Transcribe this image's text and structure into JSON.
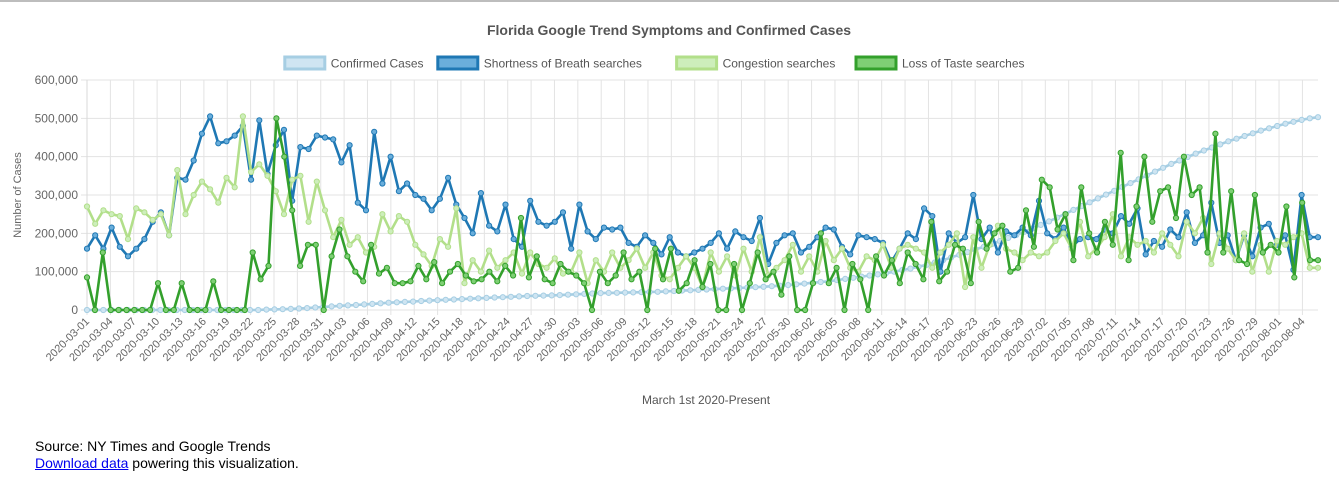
{
  "chart_data": {
    "type": "line",
    "title": "Florida Google Trend Symptoms and Confirmed Cases",
    "xlabel": "March 1st 2020-Present",
    "ylabel": "Number of Cases",
    "ylim": [
      0,
      600000
    ],
    "yticks": [
      "0",
      "100,000",
      "200,000",
      "300,000",
      "400,000",
      "500,000",
      "600,000"
    ],
    "grid": true,
    "legend_position": "top",
    "x_start": "2020-03-01",
    "x_end": "2020-08-06",
    "x_tick_labels": [
      "2020-03-01",
      "2020-03-04",
      "2020-03-07",
      "2020-03-10",
      "2020-03-13",
      "2020-03-16",
      "2020-03-19",
      "2020-03-22",
      "2020-03-25",
      "2020-03-28",
      "2020-03-31",
      "2020-04-03",
      "2020-04-06",
      "2020-04-09",
      "2020-04-12",
      "2020-04-15",
      "2020-04-18",
      "2020-04-21",
      "2020-04-24",
      "2020-04-27",
      "2020-04-30",
      "2020-05-03",
      "2020-05-06",
      "2020-05-09",
      "2020-05-12",
      "2020-05-15",
      "2020-05-18",
      "2020-05-21",
      "2020-05-24",
      "2020-05-27",
      "2020-05-30",
      "2020-06-02",
      "2020-06-05",
      "2020-06-08",
      "2020-06-11",
      "2020-06-14",
      "2020-06-17",
      "2020-06-20",
      "2020-06-23",
      "2020-06-26",
      "2020-06-29",
      "2020-07-02",
      "2020-07-05",
      "2020-07-08",
      "2020-07-11",
      "2020-07-14",
      "2020-07-17",
      "2020-07-20",
      "2020-07-23",
      "2020-07-26",
      "2020-07-29",
      "2020-08-01",
      "2020-08-04"
    ],
    "series": [
      {
        "name": "Confirmed Cases",
        "color": "#a6cee3",
        "fill": "#cfe5f2",
        "values": [
          0,
          0,
          0,
          0,
          0,
          0,
          0,
          0,
          0,
          0,
          0,
          0,
          0,
          0,
          0,
          0,
          0,
          0,
          0,
          0,
          0,
          0,
          1000,
          1500,
          2000,
          3000,
          4000,
          5000,
          6500,
          8000,
          9500,
          11000,
          12000,
          13000,
          14500,
          16000,
          17500,
          19000,
          20000,
          21000,
          22000,
          23500,
          24500,
          25500,
          26500,
          27500,
          28500,
          29500,
          30500,
          31500,
          32500,
          33500,
          34500,
          35500,
          36500,
          37000,
          37500,
          38000,
          39000,
          40000,
          41000,
          42000,
          43000,
          44000,
          44500,
          45000,
          45500,
          46000,
          46500,
          47000,
          47500,
          48500,
          49500,
          50500,
          51500,
          52500,
          53500,
          54500,
          55500,
          56500,
          57500,
          58500,
          59500,
          60500,
          62000,
          63500,
          65000,
          67000,
          69000,
          71000,
          73000,
          75000,
          78000,
          81000,
          84000,
          87000,
          90000,
          93000,
          96000,
          100000,
          104000,
          108000,
          113000,
          118000,
          124000,
          130000,
          137000,
          144000,
          151000,
          158000,
          165000,
          172000,
          180000,
          188000,
          196000,
          204000,
          213000,
          222000,
          231000,
          241000,
          251000,
          261000,
          271000,
          281000,
          291000,
          301000,
          311000,
          321000,
          331000,
          341000,
          351000,
          361000,
          371000,
          381000,
          390000,
          399000,
          408000,
          416000,
          424000,
          432000,
          440000,
          447000,
          454000,
          461000,
          468000,
          474000,
          480000,
          486000,
          491000,
          496000,
          500000,
          503000
        ]
      },
      {
        "name": "Shortness of Breath searches",
        "color": "#1f78b4",
        "fill": "#6aaedb",
        "values": [
          160000,
          195000,
          160000,
          215000,
          165000,
          140000,
          160000,
          185000,
          230000,
          255000,
          195000,
          345000,
          340000,
          390000,
          460000,
          505000,
          435000,
          440000,
          455000,
          480000,
          340000,
          495000,
          355000,
          430000,
          470000,
          285000,
          425000,
          420000,
          455000,
          450000,
          445000,
          385000,
          430000,
          280000,
          260000,
          465000,
          330000,
          400000,
          310000,
          330000,
          300000,
          290000,
          260000,
          290000,
          345000,
          275000,
          240000,
          200000,
          305000,
          220000,
          205000,
          275000,
          185000,
          165000,
          285000,
          230000,
          220000,
          230000,
          255000,
          160000,
          275000,
          205000,
          185000,
          215000,
          210000,
          215000,
          175000,
          165000,
          195000,
          175000,
          145000,
          190000,
          150000,
          140000,
          150000,
          160000,
          175000,
          200000,
          160000,
          205000,
          190000,
          180000,
          240000,
          120000,
          175000,
          195000,
          200000,
          150000,
          165000,
          190000,
          215000,
          210000,
          165000,
          145000,
          195000,
          190000,
          185000,
          175000,
          125000,
          160000,
          200000,
          185000,
          265000,
          245000,
          100000,
          200000,
          175000,
          190000,
          300000,
          185000,
          215000,
          150000,
          205000,
          195000,
          215000,
          195000,
          285000,
          200000,
          185000,
          215000,
          165000,
          185000,
          190000,
          185000,
          210000,
          200000,
          245000,
          225000,
          265000,
          145000,
          180000,
          165000,
          210000,
          190000,
          255000,
          175000,
          195000,
          280000,
          175000,
          195000,
          130000,
          195000,
          140000,
          215000,
          225000,
          170000,
          195000,
          105000,
          300000,
          190000,
          190000
        ]
      },
      {
        "name": "Congestion searches",
        "color": "#b2df8a",
        "fill": "#cdeebb",
        "values": [
          270000,
          225000,
          260000,
          250000,
          245000,
          185000,
          265000,
          255000,
          235000,
          250000,
          195000,
          365000,
          250000,
          300000,
          335000,
          315000,
          280000,
          345000,
          320000,
          505000,
          360000,
          380000,
          350000,
          310000,
          250000,
          340000,
          350000,
          230000,
          335000,
          260000,
          190000,
          235000,
          170000,
          190000,
          150000,
          165000,
          250000,
          205000,
          245000,
          230000,
          170000,
          145000,
          115000,
          185000,
          165000,
          265000,
          70000,
          130000,
          100000,
          155000,
          110000,
          130000,
          150000,
          95000,
          150000,
          120000,
          110000,
          135000,
          95000,
          100000,
          150000,
          70000,
          130000,
          100000,
          150000,
          110000,
          130000,
          160000,
          110000,
          150000,
          90000,
          80000,
          110000,
          140000,
          110000,
          60000,
          150000,
          100000,
          140000,
          90000,
          160000,
          100000,
          190000,
          90000,
          110000,
          130000,
          170000,
          100000,
          140000,
          100000,
          180000,
          130000,
          160000,
          110000,
          100000,
          140000,
          130000,
          170000,
          110000,
          160000,
          170000,
          160000,
          150000,
          110000,
          150000,
          170000,
          200000,
          60000,
          190000,
          110000,
          170000,
          220000,
          160000,
          150000,
          130000,
          150000,
          140000,
          150000,
          180000,
          200000,
          160000,
          230000,
          140000,
          160000,
          190000,
          250000,
          140000,
          190000,
          170000,
          180000,
          150000,
          200000,
          170000,
          140000,
          230000,
          200000,
          240000,
          120000,
          200000,
          160000,
          130000,
          200000,
          100000,
          170000,
          100000,
          180000,
          170000,
          190000,
          200000,
          110000,
          110000
        ]
      },
      {
        "name": "Loss of Taste searches",
        "color": "#33a02c",
        "fill": "#7fcf75",
        "values": [
          85000,
          0,
          150000,
          0,
          0,
          0,
          0,
          0,
          0,
          70000,
          0,
          0,
          70000,
          0,
          0,
          0,
          75000,
          0,
          0,
          0,
          0,
          150000,
          80000,
          115000,
          500000,
          400000,
          260000,
          115000,
          170000,
          170000,
          0,
          140000,
          210000,
          140000,
          100000,
          75000,
          170000,
          95000,
          110000,
          70000,
          70000,
          75000,
          115000,
          80000,
          125000,
          70000,
          100000,
          120000,
          90000,
          75000,
          80000,
          100000,
          75000,
          115000,
          90000,
          240000,
          85000,
          140000,
          80000,
          70000,
          120000,
          100000,
          90000,
          70000,
          0,
          100000,
          70000,
          90000,
          150000,
          80000,
          100000,
          0,
          160000,
          80000,
          160000,
          50000,
          70000,
          130000,
          60000,
          120000,
          0,
          0,
          120000,
          0,
          70000,
          150000,
          80000,
          100000,
          40000,
          140000,
          0,
          0,
          70000,
          200000,
          70000,
          110000,
          0,
          120000,
          80000,
          0,
          140000,
          90000,
          130000,
          70000,
          150000,
          120000,
          80000,
          230000,
          75000,
          100000,
          170000,
          160000,
          70000,
          230000,
          160000,
          200000,
          220000,
          100000,
          110000,
          260000,
          165000,
          340000,
          320000,
          210000,
          250000,
          130000,
          320000,
          200000,
          150000,
          230000,
          170000,
          410000,
          130000,
          270000,
          400000,
          230000,
          310000,
          320000,
          240000,
          400000,
          300000,
          320000,
          150000,
          460000,
          150000,
          310000,
          130000,
          120000,
          300000,
          150000,
          170000,
          150000,
          270000,
          85000,
          280000,
          130000,
          130000
        ]
      }
    ]
  },
  "footer": {
    "source_text": "Source: NY Times and Google Trends",
    "link_text": "Download data",
    "suffix_text": " powering this visualization."
  }
}
